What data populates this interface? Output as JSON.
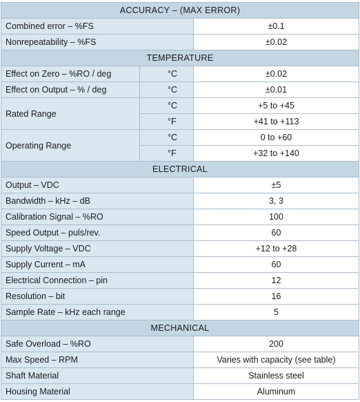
{
  "sections": [
    {
      "title": "ACCURACY – (MAX ERROR)",
      "rows": [
        {
          "label": "Combined error – %FS",
          "value": "±0.1"
        },
        {
          "label": "Nonrepeatability – %FS",
          "value": "±0.02"
        }
      ]
    },
    {
      "title": "TEMPERATURE",
      "rows": [
        {
          "label": "Effect on Zero – %RO  / deg",
          "sub": [
            {
              "unit": "°C",
              "value": "±0.02"
            }
          ]
        },
        {
          "label": "Effect on Output – % / deg",
          "sub": [
            {
              "unit": "°C",
              "value": "±0.01"
            }
          ]
        },
        {
          "label": "Rated Range",
          "sub": [
            {
              "unit": "°C",
              "value": "+5 to +45"
            },
            {
              "unit": "°F",
              "value": "+41 to +113"
            }
          ]
        },
        {
          "label": "Operating Range",
          "sub": [
            {
              "unit": "°C",
              "value": "0 to +60"
            },
            {
              "unit": "°F",
              "value": "+32 to +140"
            }
          ]
        }
      ]
    },
    {
      "title": "ELECTRICAL",
      "rows": [
        {
          "label": "Output – VDC",
          "value": "±5"
        },
        {
          "label": "Bandwidth – kHz – dB",
          "value": "3, 3"
        },
        {
          "label": "Calibration Signal – %RO",
          "value": "100"
        },
        {
          "label": "Speed Output – puls/rev.",
          "value": "60"
        },
        {
          "label": "Supply Voltage – VDC",
          "value": "+12 to +28"
        },
        {
          "label": "Supply Current – mA",
          "value": "60"
        },
        {
          "label": "Electrical Connection – pin",
          "value": "12"
        },
        {
          "label": "Resolution – bit",
          "value": "16"
        },
        {
          "label": "Sample Rate – kHz each range",
          "value": "5"
        }
      ]
    },
    {
      "title": "MECHANICAL",
      "rows": [
        {
          "label": "Safe Overload – %RO",
          "value": "200"
        },
        {
          "label": "Max Speed – RPM",
          "value": "Varies with capacity (see table)"
        },
        {
          "label": "Shaft Material",
          "value": "Stainless steel"
        },
        {
          "label": "Housing Material",
          "value": "Aluminum"
        }
      ]
    }
  ]
}
